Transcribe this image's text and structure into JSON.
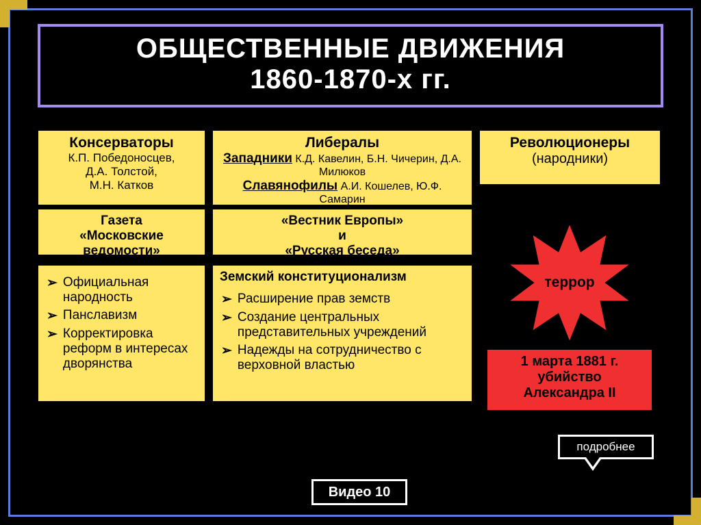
{
  "title": {
    "line1": "ОБЩЕСТВЕННЫЕ ДВИЖЕНИЯ",
    "line2": "1860-1870-х гг."
  },
  "conservatives": {
    "header": "Консерваторы",
    "names": "К.П. Победоносцев,\nД.А. Толстой,\nМ.Н. Катков",
    "paper_l1": "Газета",
    "paper_l2": "«Московские",
    "paper_l3": "ведомости»",
    "ideas": [
      "Официальная народность",
      "Панславизм",
      "Корректировка реформ в интересах дворянства"
    ]
  },
  "liberals": {
    "header": "Либералы",
    "west_label": "Западники",
    "west_names": "К.Д. Кавелин, Б.Н. Чичерин, Д.А. Милюков",
    "slav_label": "Славянофилы",
    "slav_names": "А.И. Кошелев, Ю.Ф. Самарин",
    "jour_l1": "«Вестник Европы»",
    "jour_l2": "и",
    "jour_l3": "«Русская беседа»",
    "zem_title": "Земский конституционализм",
    "zem_items": [
      "Расширение прав земств",
      "Создание центральных представительных учреждений",
      "Надежды на сотрудничество с верховной властью"
    ]
  },
  "revolutionaries": {
    "header": "Революционеры",
    "sub": "(народники)",
    "burst_label": "террор",
    "event_l1": "1 марта 1881 г.",
    "event_l2": "убийство",
    "event_l3": "Александра II"
  },
  "buttons": {
    "detail": "подробнее",
    "video": "Видео 10"
  },
  "style": {
    "bg": "#000000",
    "frame_color": "#5b7fd9",
    "title_border": "#a58af0",
    "box_fill": "#ffe666",
    "burst_fill": "#f03030",
    "accent_corner": "#d4b030",
    "text_light": "#ffffff",
    "text_dark": "#000000",
    "title_fontsize": 40,
    "head_fontsize": 21,
    "body_fontsize": 19
  }
}
